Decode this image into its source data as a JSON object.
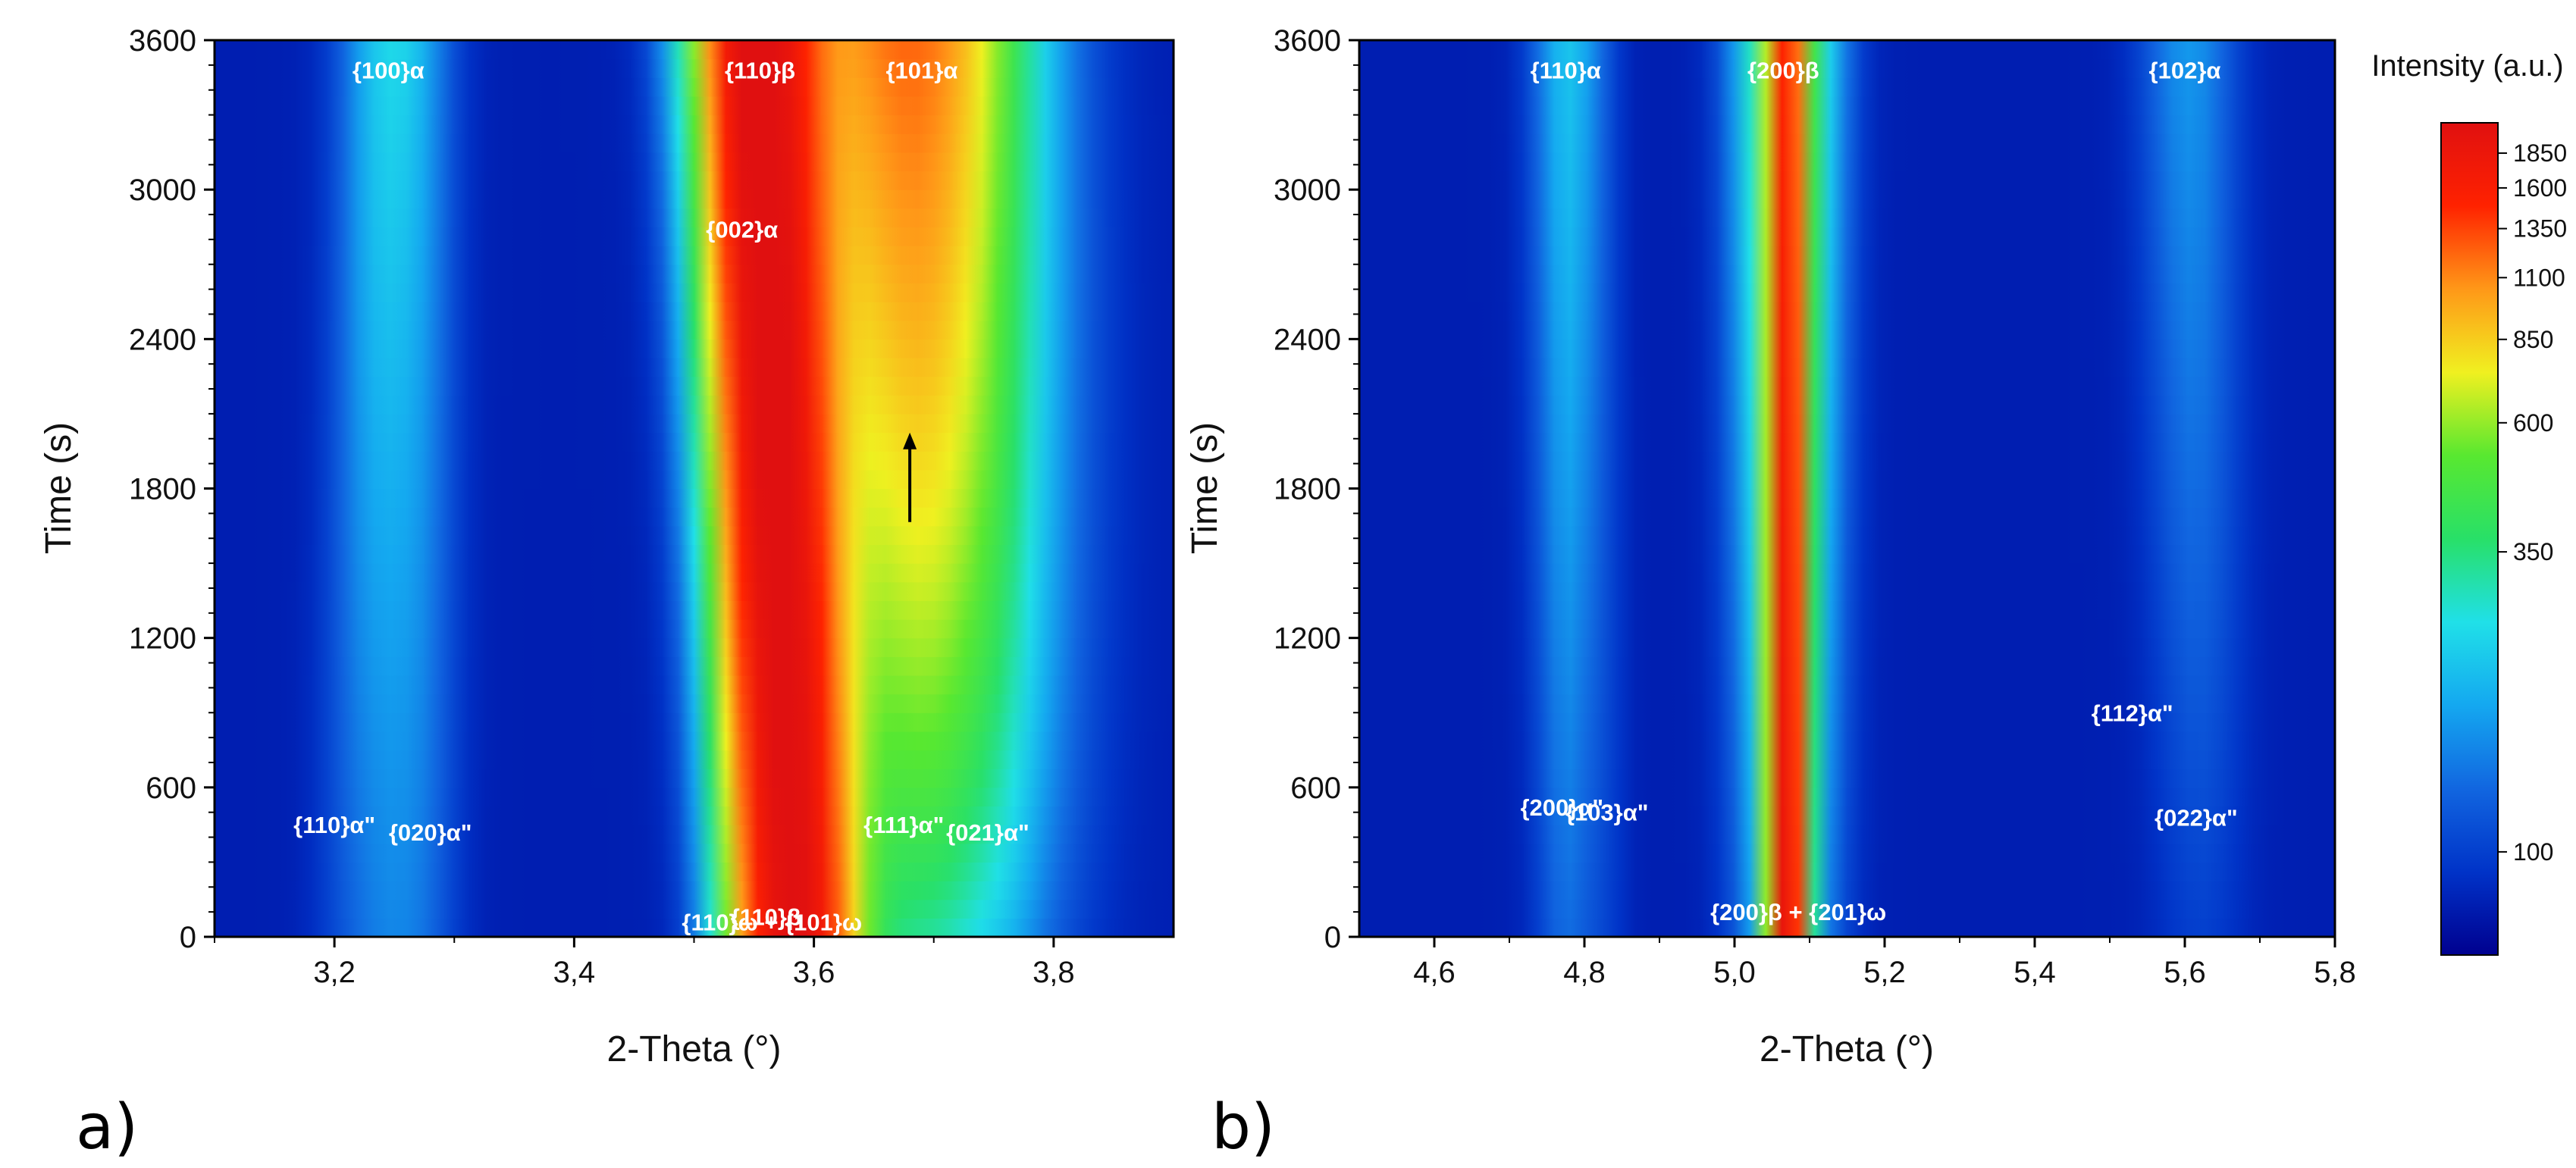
{
  "figure": {
    "colorbar": {
      "title": "Intensity (a.u.)",
      "scale": "log",
      "range": [
        65,
        2100
      ],
      "ticks": [
        100,
        350,
        600,
        850,
        1100,
        1350,
        1600,
        1850
      ],
      "colormap": [
        "#00008f",
        "#0033c8",
        "#1166e0",
        "#14a8f0",
        "#20e0e8",
        "#28e068",
        "#58e830",
        "#f0f020",
        "#ff9818",
        "#ff2200",
        "#e01010"
      ]
    }
  },
  "chart_data": [
    {
      "type": "heatmap",
      "panel_label": "a)",
      "xlabel": "2-Theta (°)",
      "ylabel": "Time (s)",
      "xlim": [
        3.1,
        3.9
      ],
      "ylim": [
        0,
        3600
      ],
      "x_ticks": [
        3.2,
        3.4,
        3.6,
        3.8
      ],
      "x_tick_labels": [
        "3,2",
        "3,4",
        "3,6",
        "3,8"
      ],
      "y_ticks": [
        0,
        600,
        1200,
        1800,
        2400,
        3000,
        3600
      ],
      "y_tick_labels": [
        "0",
        "600",
        "1200",
        "1800",
        "2400",
        "3000",
        "3600"
      ],
      "background_intensity": 80,
      "peaks": [
        {
          "label": "{100}α",
          "center_start": 3.25,
          "center_end": 3.25,
          "width": 0.028,
          "intensity_start": 150,
          "intensity_end": 190
        },
        {
          "label": "{110}α\"",
          "center_start": 3.21,
          "center_end": 3.24,
          "width": 0.02,
          "intensity_start": 95,
          "intensity_end": 130
        },
        {
          "label": "{020}α\"",
          "center_start": 3.28,
          "center_end": 3.27,
          "width": 0.018,
          "intensity_start": 92,
          "intensity_end": 110
        },
        {
          "label": "{110}β",
          "center_start": 3.585,
          "center_end": 3.555,
          "width": 0.032,
          "intensity_start": 2100,
          "intensity_end": 2100
        },
        {
          "label": "{002}α",
          "center_start": 3.55,
          "center_end": 3.535,
          "width": 0.018,
          "intensity_start": 260,
          "intensity_end": 320
        },
        {
          "label": "{101}α",
          "center_start": 3.7,
          "center_end": 3.675,
          "width": 0.06,
          "intensity_start": 260,
          "intensity_end": 1150
        },
        {
          "label": "{111}α\"",
          "center_start": 3.685,
          "center_end": 3.7,
          "width": 0.032,
          "intensity_start": 140,
          "intensity_end": 170
        },
        {
          "label": "{021}α\"",
          "center_start": 3.76,
          "center_end": 3.74,
          "width": 0.02,
          "intensity_start": 95,
          "intensity_end": 105
        }
      ],
      "annotations": [
        {
          "text": "{100}α",
          "at": [
            3.245,
            3480
          ],
          "color": "#ffffff"
        },
        {
          "text": "{110}β",
          "at": [
            3.555,
            3480
          ],
          "color": "#ffffff"
        },
        {
          "text": "{101}α",
          "at": [
            3.69,
            3480
          ],
          "color": "#ffffff"
        },
        {
          "text": "{002}α",
          "at": [
            3.54,
            2840
          ],
          "color": "#ffffff"
        },
        {
          "text": "",
          "at": [
            3.68,
            2000
          ],
          "color": "#000000"
        },
        {
          "text": "{110}β",
          "at": [
            3.56,
            80
          ],
          "color": "#ffffff"
        },
        {
          "text": "{110}α\"",
          "at": [
            3.2,
            450
          ],
          "color": "#ffffff"
        },
        {
          "text": "{020}α\"",
          "at": [
            3.28,
            420
          ],
          "color": "#ffffff"
        },
        {
          "text": "{110}ω + {101}ω",
          "at": [
            3.565,
            60
          ],
          "color": "#ffffff"
        },
        {
          "text": "{111}α\"",
          "at": [
            3.675,
            450
          ],
          "color": "#ffffff"
        },
        {
          "text": "{021}α\"",
          "at": [
            3.745,
            420
          ],
          "color": "#ffffff"
        }
      ]
    },
    {
      "type": "heatmap",
      "panel_label": "b)",
      "xlabel": "2-Theta (°)",
      "ylabel": "Time (s)",
      "xlim": [
        4.5,
        5.8
      ],
      "ylim": [
        0,
        3600
      ],
      "x_ticks": [
        4.6,
        4.8,
        5.0,
        5.2,
        5.4,
        5.6,
        5.8
      ],
      "x_tick_labels": [
        "4,6",
        "4,8",
        "5,0",
        "5,2",
        "5,4",
        "5,6",
        "5,8"
      ],
      "y_ticks": [
        0,
        600,
        1200,
        1800,
        2400,
        3000,
        3600
      ],
      "y_tick_labels": [
        "0",
        "600",
        "1200",
        "1800",
        "2400",
        "3000",
        "3600"
      ],
      "background_intensity": 80,
      "peaks": [
        {
          "label": "{110}α",
          "center_start": 4.78,
          "center_end": 4.775,
          "width": 0.03,
          "intensity_start": 120,
          "intensity_end": 190
        },
        {
          "label": "{200}β",
          "center_start": 5.07,
          "center_end": 5.07,
          "width": 0.016,
          "intensity_start": 1900,
          "intensity_end": 1150
        },
        {
          "label": "{200}β halo",
          "center_start": 5.07,
          "center_end": 5.07,
          "width": 0.04,
          "intensity_start": 250,
          "intensity_end": 520
        },
        {
          "label": "{102}α",
          "center_start": 5.62,
          "center_end": 5.605,
          "width": 0.04,
          "intensity_start": 100,
          "intensity_end": 170
        },
        {
          "label": "{200}α\"",
          "center_start": 4.77,
          "center_end": 4.78,
          "width": 0.02,
          "intensity_start": 95,
          "intensity_end": 110
        },
        {
          "label": "{103}α\"",
          "center_start": 4.83,
          "center_end": 4.82,
          "width": 0.02,
          "intensity_start": 92,
          "intensity_end": 100
        }
      ],
      "annotations": [
        {
          "text": "{110}α",
          "at": [
            4.775,
            3480
          ],
          "color": "#ffffff"
        },
        {
          "text": "{200}β",
          "at": [
            5.065,
            3480
          ],
          "color": "#ffffff"
        },
        {
          "text": "{102}α",
          "at": [
            5.6,
            3480
          ],
          "color": "#ffffff"
        },
        {
          "text": "{200}α\"",
          "at": [
            4.77,
            520
          ],
          "color": "#ffffff"
        },
        {
          "text": "{103}α\"",
          "at": [
            4.83,
            500
          ],
          "color": "#ffffff"
        },
        {
          "text": "{200}β + {201}ω",
          "at": [
            5.085,
            100
          ],
          "color": "#ffffff"
        },
        {
          "text": "{112}α\"",
          "at": [
            5.53,
            900
          ],
          "color": "#ffffff"
        },
        {
          "text": "{022}α\"",
          "at": [
            5.615,
            480
          ],
          "color": "#ffffff"
        }
      ]
    }
  ]
}
